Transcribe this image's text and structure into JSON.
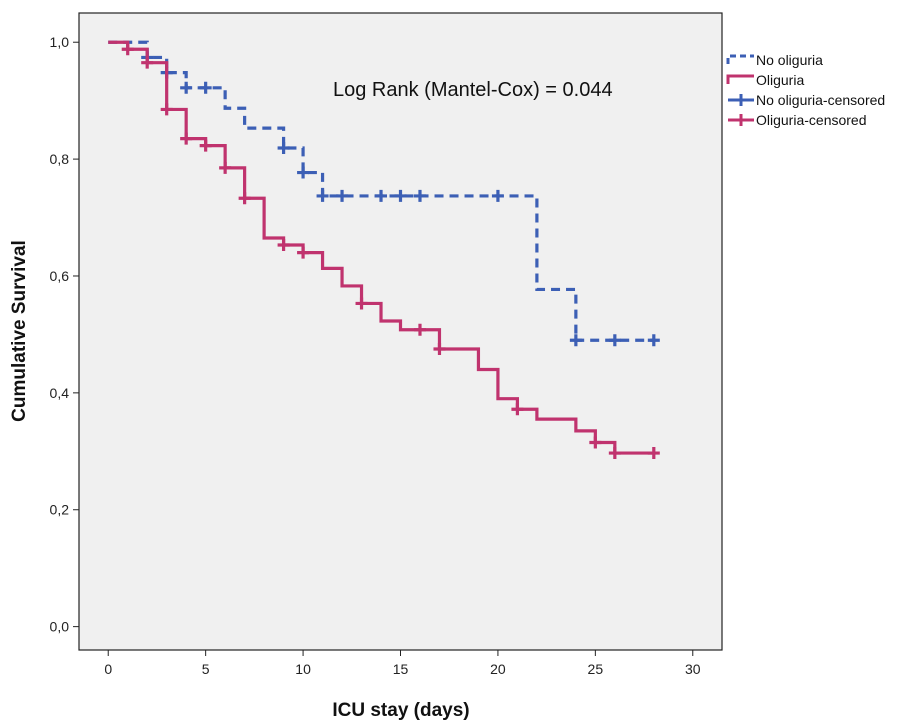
{
  "chart_data": {
    "type": "line",
    "subtype": "kaplan-meier",
    "title": "",
    "xlabel": "ICU stay (days)",
    "ylabel": "Cumulative Survival",
    "xlim": [
      -1.5,
      31.5
    ],
    "ylim": [
      -0.04,
      1.05
    ],
    "x_ticks": [
      0,
      5,
      10,
      15,
      20,
      25,
      30
    ],
    "x_tick_labels": [
      "0",
      "5",
      "10",
      "15",
      "20",
      "25",
      "30"
    ],
    "y_ticks": [
      0.0,
      0.2,
      0.4,
      0.6,
      0.8,
      1.0
    ],
    "y_tick_labels": [
      "0,0",
      "0,2",
      "0,4",
      "0,6",
      "0,8",
      "1,0"
    ],
    "grid": false,
    "legend_position": "top-right outside",
    "annotation": "Log Rank (Mantel-Cox) = 0.044",
    "legend": [
      {
        "label": "No oliguria",
        "symbol": "dashed-line",
        "color": "#3c5fb5"
      },
      {
        "label": "Oliguria",
        "symbol": "solid-line",
        "color": "#c0336e"
      },
      {
        "label": "No oliguria-censored",
        "symbol": "plus",
        "color": "#3c5fb5"
      },
      {
        "label": "Oliguria-censored",
        "symbol": "plus",
        "color": "#c0336e"
      }
    ],
    "series": [
      {
        "name": "No oliguria",
        "color": "#3c5fb5",
        "style": "dashed",
        "steps": [
          [
            0,
            1.0
          ],
          [
            2,
            0.974
          ],
          [
            3,
            0.948
          ],
          [
            4,
            0.922
          ],
          [
            6,
            0.887
          ],
          [
            7,
            0.853
          ],
          [
            9,
            0.819
          ],
          [
            10,
            0.777
          ],
          [
            11,
            0.737
          ],
          [
            22,
            0.577
          ],
          [
            24,
            0.49
          ],
          [
            28,
            0.49
          ]
        ],
        "censored": [
          [
            2,
            0.974
          ],
          [
            3,
            0.948
          ],
          [
            4,
            0.922
          ],
          [
            5,
            0.922
          ],
          [
            9,
            0.819
          ],
          [
            10,
            0.777
          ],
          [
            11,
            0.737
          ],
          [
            12,
            0.737
          ],
          [
            14,
            0.737
          ],
          [
            15,
            0.737
          ],
          [
            16,
            0.737
          ],
          [
            20,
            0.737
          ],
          [
            24,
            0.49
          ],
          [
            26,
            0.49
          ],
          [
            28,
            0.49
          ]
        ]
      },
      {
        "name": "Oliguria",
        "color": "#c0336e",
        "style": "solid",
        "steps": [
          [
            0,
            1.0
          ],
          [
            1,
            0.988
          ],
          [
            2,
            0.965
          ],
          [
            3,
            0.885
          ],
          [
            4,
            0.835
          ],
          [
            5,
            0.823
          ],
          [
            6,
            0.785
          ],
          [
            7,
            0.733
          ],
          [
            8,
            0.665
          ],
          [
            9,
            0.653
          ],
          [
            10,
            0.64
          ],
          [
            11,
            0.613
          ],
          [
            12,
            0.583
          ],
          [
            13,
            0.553
          ],
          [
            14,
            0.523
          ],
          [
            15,
            0.508
          ],
          [
            17,
            0.475
          ],
          [
            19,
            0.44
          ],
          [
            20,
            0.39
          ],
          [
            21,
            0.372
          ],
          [
            22,
            0.355
          ],
          [
            24,
            0.335
          ],
          [
            25,
            0.315
          ],
          [
            26,
            0.297
          ],
          [
            28,
            0.297
          ]
        ],
        "censored": [
          [
            1,
            0.988
          ],
          [
            2,
            0.965
          ],
          [
            3,
            0.885
          ],
          [
            4,
            0.835
          ],
          [
            5,
            0.823
          ],
          [
            6,
            0.785
          ],
          [
            7,
            0.733
          ],
          [
            9,
            0.653
          ],
          [
            10,
            0.64
          ],
          [
            13,
            0.553
          ],
          [
            16,
            0.508
          ],
          [
            17,
            0.475
          ],
          [
            21,
            0.372
          ],
          [
            25,
            0.315
          ],
          [
            26,
            0.297
          ],
          [
            28,
            0.297
          ]
        ]
      }
    ]
  }
}
